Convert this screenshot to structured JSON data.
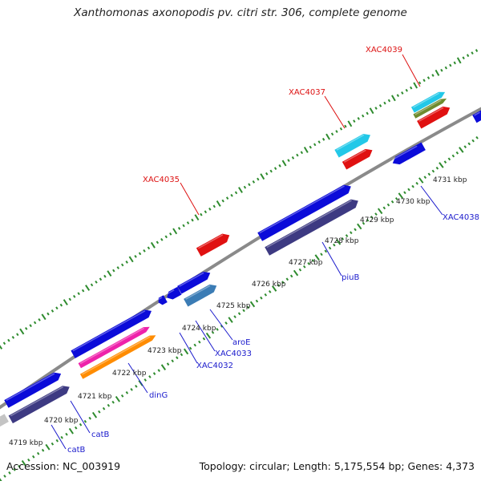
{
  "title": "Xanthomonas axonopodis pv. citri str. 306, complete genome",
  "footer": {
    "accession": "Accession: NC_003919",
    "summary": "Topology: circular; Length: 5,175,554 bp; Genes: 4,373"
  },
  "colors": {
    "backbone": "#8a8a8a",
    "tick": "#2e8b2e",
    "inner_label": "#1a1acc",
    "outer_label": "#dd1111",
    "forward_cds": "#0b0bd9",
    "reverse_cds": "#3d3a82",
    "rna_red": "#e01111",
    "cyan": "#22c8e8",
    "magenta": "#ee22aa",
    "orange": "#ff8c00",
    "steel": "#3b7cb5",
    "olive": "#6e8b2e",
    "gray": "#c4c4c4"
  },
  "axis_labels": [
    "4719 kbp",
    "4720 kbp",
    "4721 kbp",
    "4722 kbp",
    "4723 kbp",
    "4724 kbp",
    "4725 kbp",
    "4726 kbp",
    "4727 kbp",
    "4728 kbp",
    "4729 kbp",
    "4730 kbp",
    "4731 kbp"
  ],
  "inner_gene_labels": [
    "catB",
    "catB",
    "dinG",
    "XAC4032",
    "XAC4033",
    "aroE",
    "piuB",
    "XAC4038"
  ],
  "outer_gene_labels": [
    "XAC4035",
    "XAC4037",
    "XAC4039"
  ]
}
